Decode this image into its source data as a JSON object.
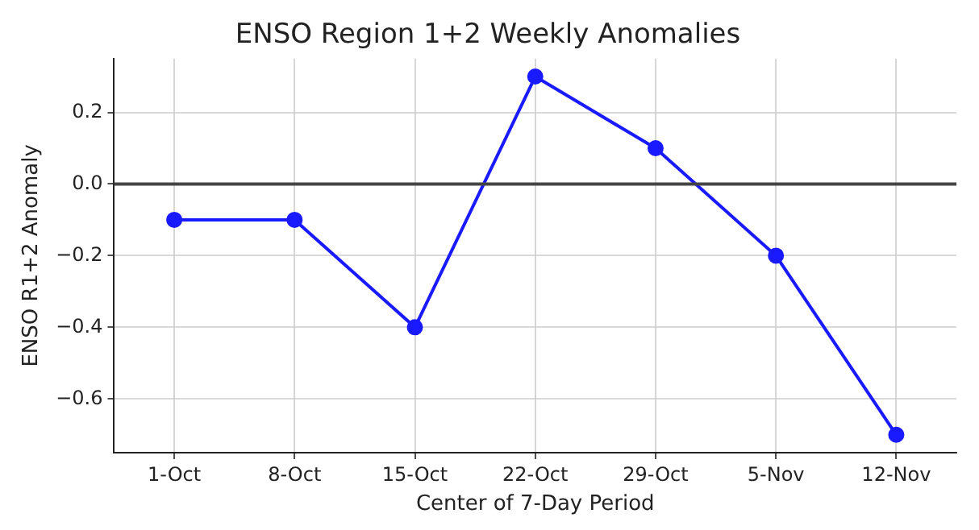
{
  "chart_data": {
    "type": "line",
    "title": "ENSO Region 1+2 Weekly Anomalies",
    "xlabel": "Center of 7-Day Period",
    "ylabel": "ENSO R1+2 Anomaly",
    "categories": [
      "1-Oct",
      "8-Oct",
      "15-Oct",
      "22-Oct",
      "29-Oct",
      "5-Nov",
      "12-Nov"
    ],
    "series": [
      {
        "color": "#1a1aff",
        "values": [
          -0.1,
          -0.1,
          -0.4,
          0.3,
          0.1,
          -0.2,
          -0.7
        ]
      }
    ],
    "ylim": [
      -0.75,
      0.35
    ],
    "yticks": [
      {
        "value": -0.6,
        "label": "−0.6"
      },
      {
        "value": -0.4,
        "label": "−0.4"
      },
      {
        "value": -0.2,
        "label": "−0.2"
      },
      {
        "value": 0,
        "label": "0.0"
      },
      {
        "value": 0.2,
        "label": "0.2"
      }
    ],
    "ref_lines": [
      {
        "axis": "y",
        "value": 0,
        "color": "#444444"
      }
    ],
    "grid": true,
    "legend": false,
    "marker": "circle",
    "line_style": "solid"
  }
}
